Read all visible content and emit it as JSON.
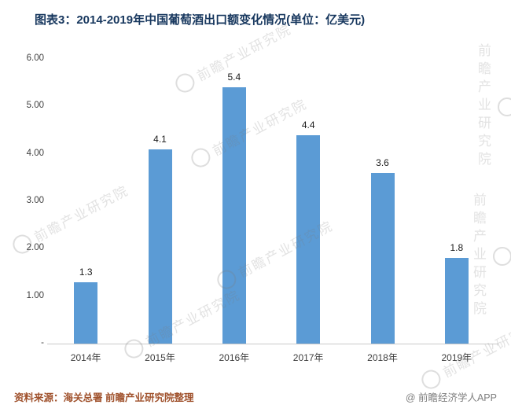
{
  "title": "图表3：2014-2019年中国葡萄酒出口额变化情况(单位：亿美元)",
  "footer": {
    "source": "资料来源：海关总署 前瞻产业研究院整理",
    "credit": "@ 前瞻经济学人APP"
  },
  "watermark": {
    "text": "前瞻产业研究院"
  },
  "colors": {
    "bar": "#5B9BD5",
    "title": "#17375E",
    "source": "#A0522D",
    "credit": "#7F7F7F",
    "axis": "#C9C9C9"
  },
  "chart_data": {
    "type": "bar",
    "title": "图表3：2014-2019年中国葡萄酒出口额变化情况(单位：亿美元)",
    "categories": [
      "2014年",
      "2015年",
      "2016年",
      "2017年",
      "2018年",
      "2019年"
    ],
    "values": [
      1.3,
      4.1,
      5.4,
      4.4,
      3.6,
      1.8
    ],
    "xlabel": "",
    "ylabel": "",
    "ylim": [
      0,
      6
    ],
    "yticks": [
      "6.00",
      "5.00",
      "4.00",
      "3.00",
      "2.00",
      "1.00",
      "-"
    ],
    "ytick_values": [
      6,
      5,
      4,
      3,
      2,
      1,
      0
    ],
    "grid": false,
    "legend": null
  }
}
